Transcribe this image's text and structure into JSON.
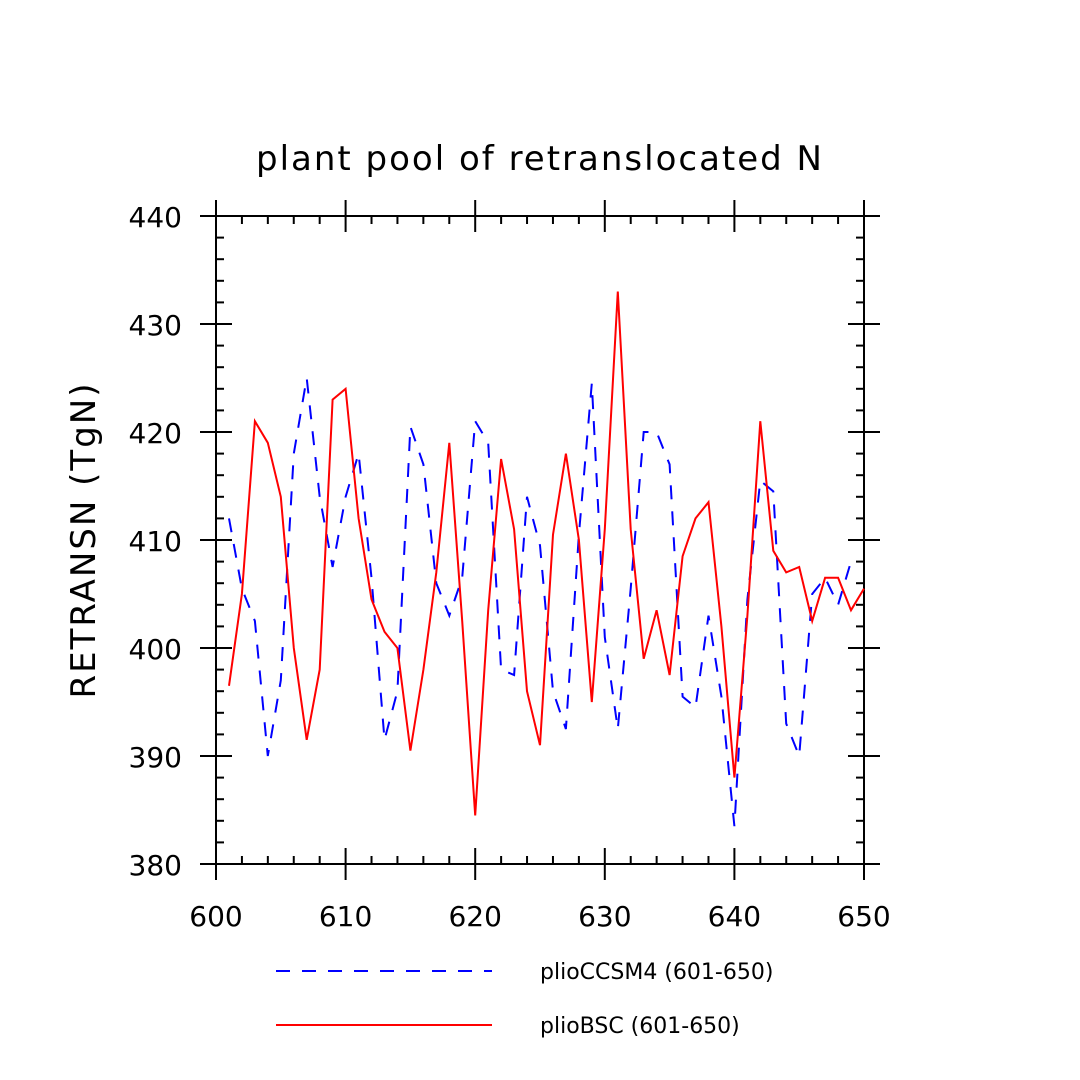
{
  "chart_data": {
    "type": "line",
    "title": "plant pool of retranslocated N",
    "xlabel": "",
    "ylabel": "RETRANSN   (TgN)",
    "xlim": [
      600,
      650
    ],
    "ylim": [
      380,
      440
    ],
    "xticks": [
      600,
      610,
      620,
      630,
      640,
      650
    ],
    "yticks": [
      380,
      390,
      400,
      410,
      420,
      430,
      440
    ],
    "grid": false,
    "legend_position": "bottom",
    "x": [
      601,
      602,
      603,
      604,
      605,
      606,
      607,
      608,
      609,
      610,
      611,
      612,
      613,
      614,
      615,
      616,
      617,
      618,
      619,
      620,
      621,
      622,
      623,
      624,
      625,
      626,
      627,
      628,
      629,
      630,
      631,
      632,
      633,
      634,
      635,
      636,
      637,
      638,
      639,
      640,
      641,
      642,
      643,
      644,
      645,
      646,
      647,
      648,
      649,
      650
    ],
    "series": [
      {
        "name": "plioCCSM4 (601-650)",
        "color": "#0000ff",
        "dash": true,
        "values": [
          412,
          405.5,
          402.5,
          390,
          397,
          418,
          425,
          414,
          407.5,
          414,
          418,
          406.5,
          391.5,
          396,
          420.5,
          417,
          406,
          403,
          406.5,
          421,
          419,
          398,
          397.5,
          414,
          409.5,
          396,
          392.5,
          410.5,
          424.5,
          401,
          392.5,
          405.5,
          420,
          420,
          417,
          395.5,
          394.5,
          403,
          395.5,
          383.5,
          404.5,
          415.5,
          414.5,
          393,
          390,
          405,
          406.5,
          404,
          408,
          null
        ]
      },
      {
        "name": "plioBSC (601-650)",
        "color": "#ff0000",
        "dash": false,
        "values": [
          396.5,
          405,
          421,
          419,
          414,
          400,
          391.5,
          398,
          423,
          424,
          412,
          404.5,
          401.5,
          400,
          390.5,
          398,
          407,
          419,
          402.5,
          384.5,
          403.5,
          417.5,
          411,
          396,
          391,
          410.5,
          418,
          410,
          395,
          411,
          433,
          411,
          399,
          403.5,
          397.5,
          408.5,
          412,
          413.5,
          402,
          388,
          403,
          421,
          409,
          407,
          407.5,
          402.5,
          406.5,
          406.5,
          403.5,
          405.5
        ]
      }
    ]
  }
}
